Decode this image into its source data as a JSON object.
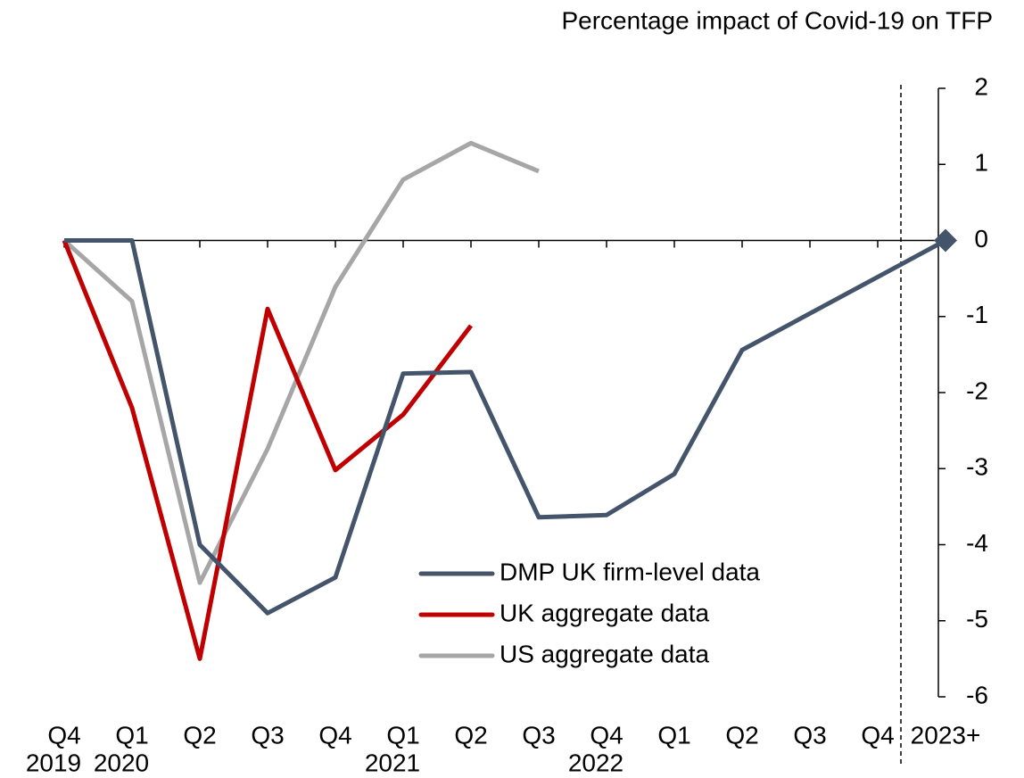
{
  "chart_data": {
    "type": "line",
    "title": "Percentage impact of Covid-19 on TFP",
    "categories": [
      "Q4",
      "Q1",
      "Q2",
      "Q3",
      "Q4",
      "Q1",
      "Q2",
      "Q3",
      "Q4",
      "Q1",
      "Q2",
      "Q3",
      "Q4",
      "2023+"
    ],
    "year_labels": [
      "2019",
      "2020",
      null,
      null,
      null,
      "2021",
      null,
      null,
      "2022",
      null,
      null,
      null,
      null,
      null
    ],
    "series": [
      {
        "name": "DMP UK firm-level data",
        "color": "#44546a",
        "values": [
          0,
          0,
          -4.0,
          -4.9,
          -4.43,
          -1.75,
          -1.73,
          -3.64,
          -3.61,
          -3.07,
          -1.44,
          -0.96,
          -0.48,
          0
        ],
        "end_marker": "diamond"
      },
      {
        "name": "UK aggregate data",
        "color": "#c00000",
        "values": [
          0,
          -2.2,
          -5.5,
          -0.9,
          -3.02,
          -2.29,
          -1.12,
          null,
          null,
          null,
          null,
          null,
          null,
          null
        ]
      },
      {
        "name": "US aggregate data",
        "color": "#a6a6a6",
        "values": [
          0,
          -0.8,
          -4.5,
          -2.74,
          -0.61,
          0.8,
          1.28,
          0.91,
          null,
          null,
          null,
          null,
          null,
          null
        ]
      }
    ],
    "ylim": [
      -6,
      2
    ],
    "yticks": [
      -6,
      -5,
      -4,
      -3,
      -2,
      -1,
      0,
      1,
      2
    ]
  }
}
